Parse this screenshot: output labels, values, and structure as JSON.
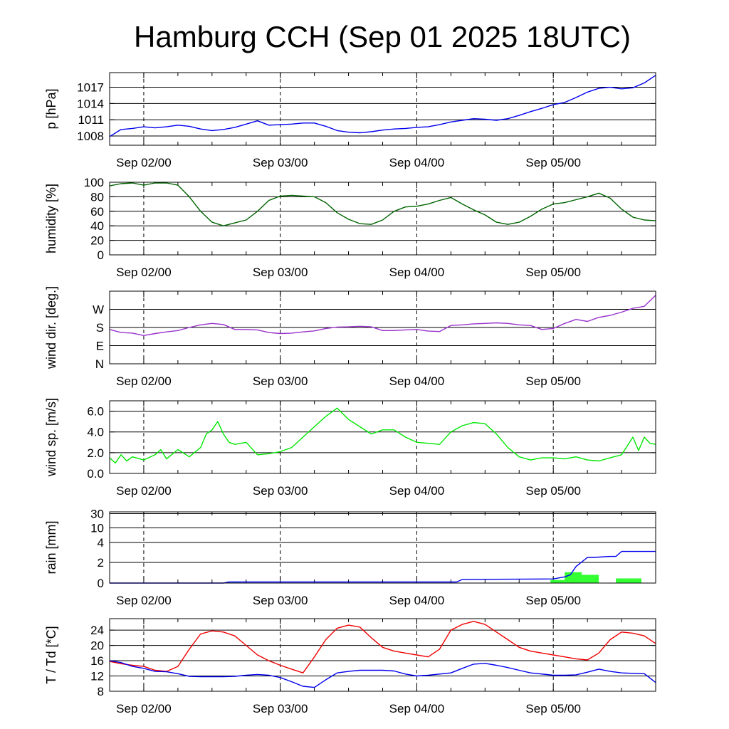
{
  "chart_data": {
    "title": "Hamburg CCH (Sep 01 2025 18UTC)",
    "type": "line",
    "x_axis": {
      "unit": "hours since Sep 01 2025 18UTC",
      "range": [
        0,
        96
      ],
      "day_ticks": [
        {
          "x": 6,
          "label": "Sep 02/00"
        },
        {
          "x": 30,
          "label": "Sep 03/00"
        },
        {
          "x": 54,
          "label": "Sep 04/00"
        },
        {
          "x": 78,
          "label": "Sep 05/00"
        }
      ]
    },
    "panels": [
      {
        "id": "pressure",
        "ylabel": "p [hPa]",
        "ylim": [
          1006.3,
          1019.7
        ],
        "yticks": [
          1008,
          1011,
          1014,
          1017
        ],
        "ytick_labels": [
          "1008",
          "1011",
          "1014",
          "1017"
        ],
        "series": [
          {
            "color": "#0000ee",
            "x": [
              0,
              2,
              4,
              6,
              8,
              10,
              12,
              14,
              16,
              18,
              20,
              22,
              24,
              26,
              28,
              30,
              32,
              34,
              36,
              38,
              40,
              42,
              44,
              46,
              48,
              50,
              52,
              54,
              56,
              58,
              60,
              62,
              64,
              66,
              68,
              70,
              72,
              74,
              76,
              78,
              80,
              82,
              84,
              86,
              88,
              90,
              92,
              94,
              96
            ],
            "y": [
              1007.9,
              1009.2,
              1009.4,
              1009.7,
              1009.5,
              1009.7,
              1010.0,
              1009.8,
              1009.3,
              1009.0,
              1009.2,
              1009.6,
              1010.2,
              1010.8,
              1010.0,
              1010.1,
              1010.2,
              1010.4,
              1010.4,
              1009.8,
              1009.0,
              1008.7,
              1008.6,
              1008.8,
              1009.1,
              1009.3,
              1009.4,
              1009.6,
              1009.7,
              1010.1,
              1010.6,
              1010.9,
              1011.2,
              1011.1,
              1010.9,
              1011.2,
              1011.8,
              1012.5,
              1013.1,
              1013.8,
              1014.2,
              1015.1,
              1016.1,
              1016.8,
              1017.0,
              1016.7,
              1016.9,
              1017.8,
              1019.2
            ]
          }
        ]
      },
      {
        "id": "humidity",
        "ylabel": "humidity [%]",
        "ylim": [
          0,
          100
        ],
        "yticks": [
          0,
          20,
          40,
          60,
          80,
          100
        ],
        "ytick_labels": [
          "0",
          "20",
          "40",
          "60",
          "80",
          "100"
        ],
        "series": [
          {
            "color": "#006400",
            "x": [
              0,
              2,
              4,
              6,
              8,
              10,
              12,
              14,
              16,
              18,
              20,
              22,
              24,
              26,
              28,
              30,
              32,
              34,
              36,
              38,
              40,
              42,
              44,
              46,
              48,
              50,
              52,
              54,
              56,
              58,
              60,
              62,
              64,
              66,
              68,
              70,
              72,
              74,
              76,
              78,
              80,
              82,
              84,
              86,
              88,
              90,
              92,
              94,
              96
            ],
            "y": [
              95,
              98,
              99,
              96,
              99,
              99,
              96,
              80,
              60,
              45,
              40,
              44,
              48,
              60,
              75,
              81,
              82,
              81,
              80,
              72,
              58,
              49,
              43,
              42,
              48,
              60,
              66,
              67,
              70,
              75,
              79,
              70,
              62,
              55,
              45,
              42,
              45,
              53,
              63,
              70,
              72,
              76,
              80,
              85,
              78,
              63,
              52,
              48,
              47
            ]
          }
        ]
      },
      {
        "id": "wind_direction",
        "ylabel": "wind dir. [deg.]",
        "ylim": [
          0,
          360
        ],
        "yticks": [
          0,
          90,
          180,
          270
        ],
        "ytick_labels": [
          "N",
          "E",
          "S",
          "W"
        ],
        "series": [
          {
            "color": "#9932cc",
            "x": [
              0,
              2,
              4,
              6,
              8,
              10,
              12,
              14,
              16,
              18,
              20,
              22,
              24,
              26,
              28,
              30,
              32,
              34,
              36,
              38,
              40,
              42,
              44,
              46,
              48,
              50,
              52,
              54,
              56,
              58,
              60,
              62,
              64,
              66,
              68,
              70,
              72,
              74,
              76,
              78,
              80,
              82,
              84,
              86,
              88,
              90,
              92,
              94,
              96
            ],
            "y": [
              170,
              155,
              152,
              140,
              150,
              158,
              165,
              180,
              193,
              200,
              195,
              170,
              170,
              168,
              155,
              150,
              152,
              158,
              163,
              175,
              182,
              183,
              186,
              183,
              165,
              165,
              168,
              170,
              162,
              160,
              190,
              193,
              198,
              200,
              203,
              200,
              193,
              190,
              170,
              175,
              200,
              220,
              210,
              230,
              240,
              256,
              275,
              285,
              340
            ]
          }
        ]
      },
      {
        "id": "wind_speed",
        "ylabel": "wind sp. [m/s]",
        "ylim": [
          0,
          7
        ],
        "yticks": [
          0,
          2,
          4,
          6
        ],
        "ytick_labels": [
          "0.0",
          "2.0",
          "4.0",
          "6.0"
        ],
        "series": [
          {
            "color": "#00e600",
            "x": [
              0,
              1,
              2,
              3,
              4,
              6,
              8,
              9,
              10,
              12,
              14,
              16,
              17,
              18,
              19,
              20,
              21,
              22,
              24,
              26,
              28,
              30,
              32,
              34,
              36,
              38,
              40,
              42,
              44,
              46,
              48,
              50,
              52,
              54,
              56,
              58,
              60,
              62,
              64,
              66,
              68,
              70,
              72,
              74,
              76,
              78,
              80,
              82,
              84,
              86,
              88,
              90,
              92,
              93,
              94,
              95,
              96
            ],
            "y": [
              1.5,
              1.0,
              1.8,
              1.2,
              1.6,
              1.3,
              1.8,
              2.3,
              1.4,
              2.3,
              1.6,
              2.5,
              3.8,
              4.2,
              5.0,
              3.8,
              3.0,
              2.8,
              3.0,
              1.8,
              1.9,
              2.1,
              2.5,
              3.5,
              4.5,
              5.5,
              6.3,
              5.2,
              4.5,
              3.8,
              4.2,
              4.2,
              3.5,
              3.0,
              2.9,
              2.8,
              4.0,
              4.6,
              4.9,
              4.8,
              3.8,
              2.5,
              1.6,
              1.3,
              1.5,
              1.5,
              1.4,
              1.6,
              1.3,
              1.2,
              1.5,
              1.8,
              3.5,
              2.2,
              3.5,
              2.9,
              2.8
            ]
          }
        ]
      },
      {
        "id": "rain",
        "ylabel": "rain [mm]",
        "scale": "nonlinear",
        "yticks": [
          0,
          2,
          4,
          10,
          30
        ],
        "ytick_labels": [
          "0",
          "2",
          "4",
          "10",
          "30"
        ],
        "bars": {
          "color": "#33ff33",
          "x_start": [
            20,
            77.5,
            80,
            83,
            89
          ],
          "x_end": [
            23,
            80,
            83,
            86,
            93.5
          ],
          "values": [
            0.05,
            0.3,
            1.05,
            0.8,
            0.45
          ]
        },
        "series": [
          {
            "color": "#0000ee",
            "x": [
              0,
              20,
              21,
              61,
              62,
              78,
              80,
              81,
              82,
              84,
              85,
              88,
              89,
              90,
              96
            ],
            "y": [
              0,
              0,
              0.1,
              0.1,
              0.35,
              0.4,
              0.6,
              0.8,
              1.6,
              2.5,
              2.5,
              2.6,
              2.6,
              3.1,
              3.1
            ]
          }
        ]
      },
      {
        "id": "temperature",
        "ylabel": "T / Td [*C]",
        "ylim": [
          8,
          27
        ],
        "yticks": [
          8,
          12,
          16,
          20,
          24
        ],
        "ytick_labels": [
          "8",
          "12",
          "16",
          "20",
          "24"
        ],
        "series": [
          {
            "color": "#ee0000",
            "x": [
              0,
              2,
              4,
              6,
              8,
              10,
              12,
              14,
              16,
              18,
              20,
              22,
              24,
              26,
              28,
              30,
              32,
              34,
              36,
              38,
              40,
              42,
              44,
              46,
              48,
              50,
              52,
              54,
              56,
              58,
              60,
              62,
              64,
              66,
              68,
              70,
              72,
              74,
              76,
              78,
              80,
              82,
              84,
              86,
              88,
              90,
              92,
              94,
              96
            ],
            "y": [
              15.8,
              15.2,
              14.8,
              14.5,
              13.5,
              13.2,
              14.5,
              19,
              23,
              23.8,
              23.5,
              22.5,
              20,
              17.5,
              16,
              14.8,
              13.8,
              12.8,
              17,
              21.5,
              24.5,
              25.3,
              24.8,
              22,
              19.5,
              18.5,
              18,
              17.5,
              17,
              19,
              24,
              25.5,
              26.3,
              25.5,
              23.5,
              21.5,
              19.5,
              18.5,
              18,
              17.5,
              17,
              16.5,
              16.2,
              18,
              21.5,
              23.5,
              23.2,
              22.5,
              20.5
            ]
          },
          {
            "color": "#0000ee",
            "x": [
              0,
              2,
              4,
              6,
              8,
              10,
              12,
              14,
              16,
              18,
              20,
              22,
              24,
              26,
              28,
              30,
              32,
              34,
              36,
              38,
              40,
              42,
              44,
              46,
              48,
              50,
              52,
              54,
              56,
              58,
              60,
              62,
              64,
              66,
              68,
              70,
              72,
              74,
              76,
              78,
              80,
              82,
              84,
              86,
              88,
              90,
              92,
              94,
              96
            ],
            "y": [
              16,
              15.5,
              14.5,
              14,
              13.2,
              13.1,
              12.6,
              11.9,
              11.8,
              11.8,
              11.8,
              11.9,
              12.2,
              12.4,
              12.2,
              11.6,
              10.5,
              9.3,
              9.0,
              11.0,
              12.8,
              13.2,
              13.5,
              13.5,
              13.5,
              13.3,
              12.5,
              12.0,
              12.2,
              12.5,
              12.8,
              14.0,
              15.1,
              15.3,
              14.8,
              14.2,
              13.5,
              12.8,
              12.5,
              12.2,
              12.2,
              12.3,
              13.0,
              13.8,
              13.2,
              12.8,
              12.7,
              12.6,
              10.3
            ]
          }
        ]
      }
    ]
  }
}
